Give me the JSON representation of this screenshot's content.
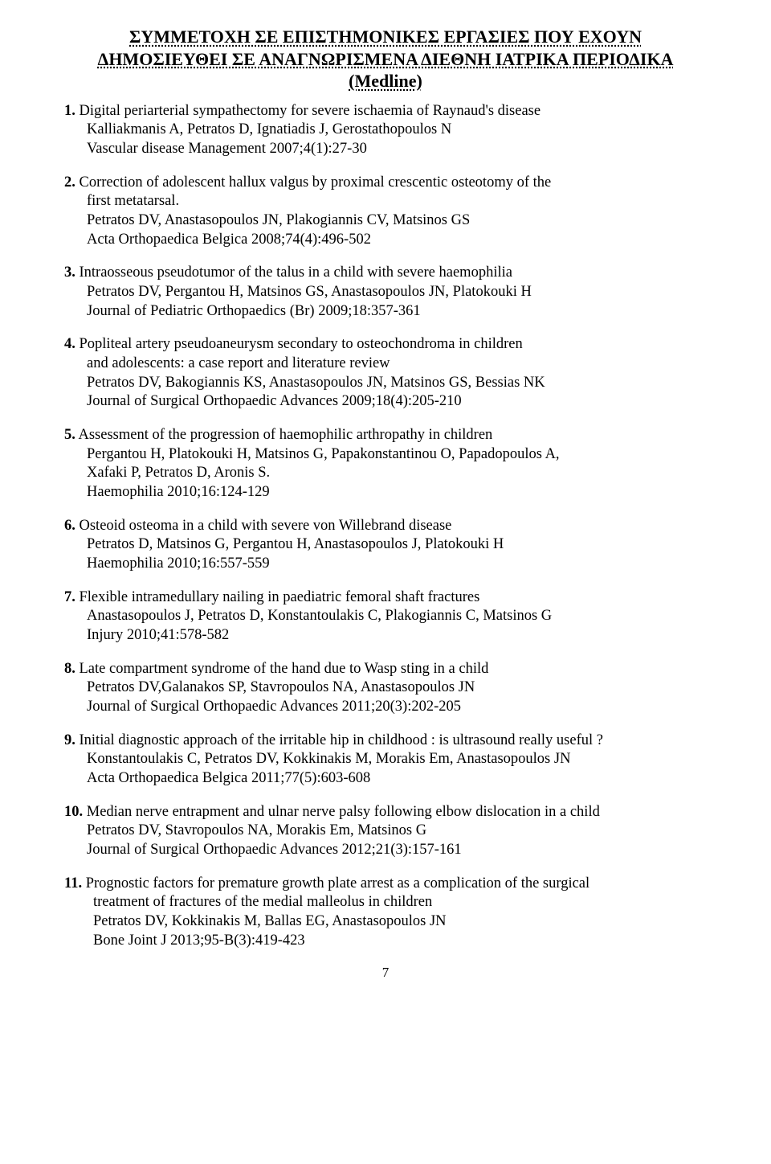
{
  "heading": {
    "line1": "ΣΥΜΜΕΤΟΧΗ ΣΕ ΕΠΙΣΤΗΜΟΝΙΚΕΣ ΕΡΓΑΣΙΕΣ ΠΟΥ ΕΧΟΥΝ",
    "line2": "ΔΗΜΟΣΙΕΥΘΕΙ ΣΕ ΑΝΑΓΝΩΡΙΣΜΕΝΑ ΔΙΕΘΝΗ ΙΑΤΡΙΚΑ ΠΕΡΙΟΔΙΚΑ",
    "line3": "(Medline)"
  },
  "pubs": [
    {
      "num": "1.",
      "title": "Digital periarterial sympathectomy for severe ischaemia of Raynaud's disease",
      "authors": "Kalliakmanis A, Petratos D, Ignatiadis J, Gerostathopoulos N",
      "journal": "Vascular disease Management 2007;4(1):27-30"
    },
    {
      "num": "2.",
      "title": "Correction of adolescent hallux valgus by proximal crescentic osteotomy of the",
      "title2": "first metatarsal.",
      "authors": "Petratos DV, Anastasopoulos JN, Plakogiannis CV, Matsinos GS",
      "journal": "Acta Orthopaedica Belgica 2008;74(4):496-502"
    },
    {
      "num": "3.",
      "title": "Intraosseous pseudotumor of the talus in a child with severe haemophilia",
      "authors": "Petratos DV, Pergantou H, Matsinos GS, Anastasopoulos JN, Platokouki H",
      "journal": "Journal of Pediatric Orthopaedics (Br) 2009;18:357-361"
    },
    {
      "num": "4.",
      "title": "Popliteal artery pseudoaneurysm secondary to osteochondroma in children",
      "title2": "and adolescents: a case report and literature review",
      "authors": "Petratos DV, Bakogiannis KS, Anastasopoulos JN, Matsinos GS, Bessias NK",
      "journal": "Journal of Surgical Orthopaedic Advances 2009;18(4):205-210"
    },
    {
      "num": "5.",
      "title": "Assessment of the progression of haemophilic arthropathy in children",
      "authors": "Pergantou H, Platokouki H, Matsinos G, Papakonstantinou O, Papadopoulos A,",
      "authors2": "Xafaki P, Petratos D, Aronis S.",
      "journal": "Haemophilia 2010;16:124-129"
    },
    {
      "num": "6.",
      "title": "Osteoid osteoma in a child with severe von Willebrand disease",
      "authors": "Petratos D, Matsinos G, Pergantou H, Anastasopoulos J, Platokouki H",
      "journal": "Haemophilia 2010;16:557-559"
    },
    {
      "num": "7.",
      "title": "Flexible intramedullary nailing in paediatric femoral shaft fractures",
      "authors": "Anastasopoulos J, Petratos D, Konstantoulakis C, Plakogiannis C, Matsinos G",
      "journal": "Injury 2010;41:578-582"
    },
    {
      "num": "8.",
      "title": "Late compartment syndrome of the hand due to Wasp sting in a child",
      "authors": "Petratos DV,Galanakos SP, Stavropoulos NA, Anastasopoulos JN",
      "journal": "Journal of Surgical Orthopaedic Advances 2011;20(3):202-205"
    },
    {
      "num": "9.",
      "title": "Initial diagnostic approach of the irritable hip in childhood : is ultrasound really useful ?",
      "authors": "Konstantoulakis C, Petratos DV, Kokkinakis M, Morakis Em, Anastasopoulos JN",
      "journal": "Acta Orthopaedica Belgica 2011;77(5):603-608"
    },
    {
      "num": "10.",
      "title": "Median nerve entrapment and ulnar nerve palsy following elbow dislocation in a child",
      "authors": "Petratos DV, Stavropoulos NA, Morakis Em, Matsinos G",
      "journal": "Journal of Surgical Orthopaedic Advances 2012;21(3):157-161"
    },
    {
      "num": "11.",
      "title": "Prognostic factors for premature growth plate arrest as a complication of the surgical",
      "title2": "treatment of fractures of the medial malleolus in children",
      "authors": "Petratos DV, Kokkinakis M, Ballas EG, Anastasopoulos JN",
      "journal": "Bone Joint J 2013;95-B(3):419-423",
      "indent": true
    }
  ],
  "page_number": "7"
}
